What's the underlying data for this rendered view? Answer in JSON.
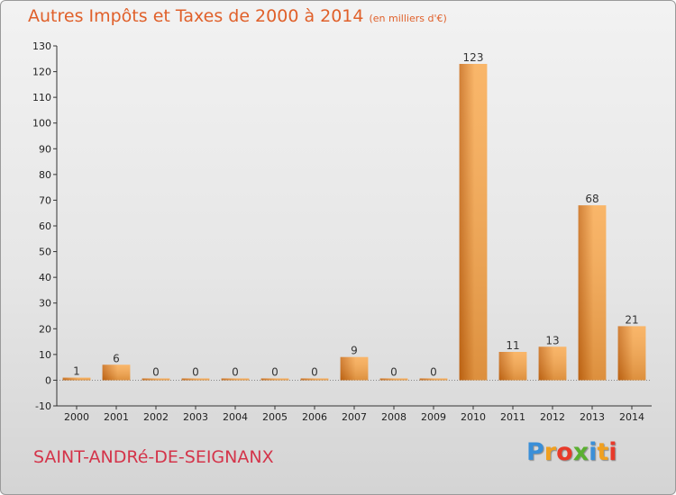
{
  "title": "Autres Impôts et Taxes de 2000 à 2014",
  "subtitle": "(en milliers d'€)",
  "commune": "SAINT-ANDRé-DE-SEIGNANX",
  "logo": {
    "letters": [
      "P",
      "r",
      "o",
      "x",
      "i",
      "t",
      "i"
    ],
    "colors": [
      "#3a8fd8",
      "#f0a020",
      "#e83a2a",
      "#5ab030",
      "#3a8fd8",
      "#f0a020",
      "#e83a2a"
    ]
  },
  "colors": {
    "bar_light": "#f8a94f",
    "bar_dark": "#c96a14",
    "title": "#e0602a",
    "commune": "#d4344a"
  },
  "chart_data": {
    "type": "bar",
    "title": "Autres Impôts et Taxes de 2000 à 2014",
    "subtitle": "(en milliers d'€)",
    "categories": [
      "2000",
      "2001",
      "2002",
      "2003",
      "2004",
      "2005",
      "2006",
      "2007",
      "2008",
      "2009",
      "2010",
      "2011",
      "2012",
      "2013",
      "2014"
    ],
    "values": [
      1,
      6,
      0,
      0,
      0,
      0,
      0,
      9,
      0,
      0,
      123,
      11,
      13,
      68,
      21
    ],
    "data_labels": [
      "1",
      "6",
      "0",
      "0",
      "0",
      "0",
      "0",
      "9",
      "0",
      "0",
      "123",
      "11",
      "13",
      "68",
      "21"
    ],
    "ylim": [
      -10,
      130
    ],
    "yticks": [
      -10,
      0,
      10,
      20,
      30,
      40,
      50,
      60,
      70,
      80,
      90,
      100,
      110,
      120,
      130
    ],
    "grid": false,
    "legend": "none"
  }
}
